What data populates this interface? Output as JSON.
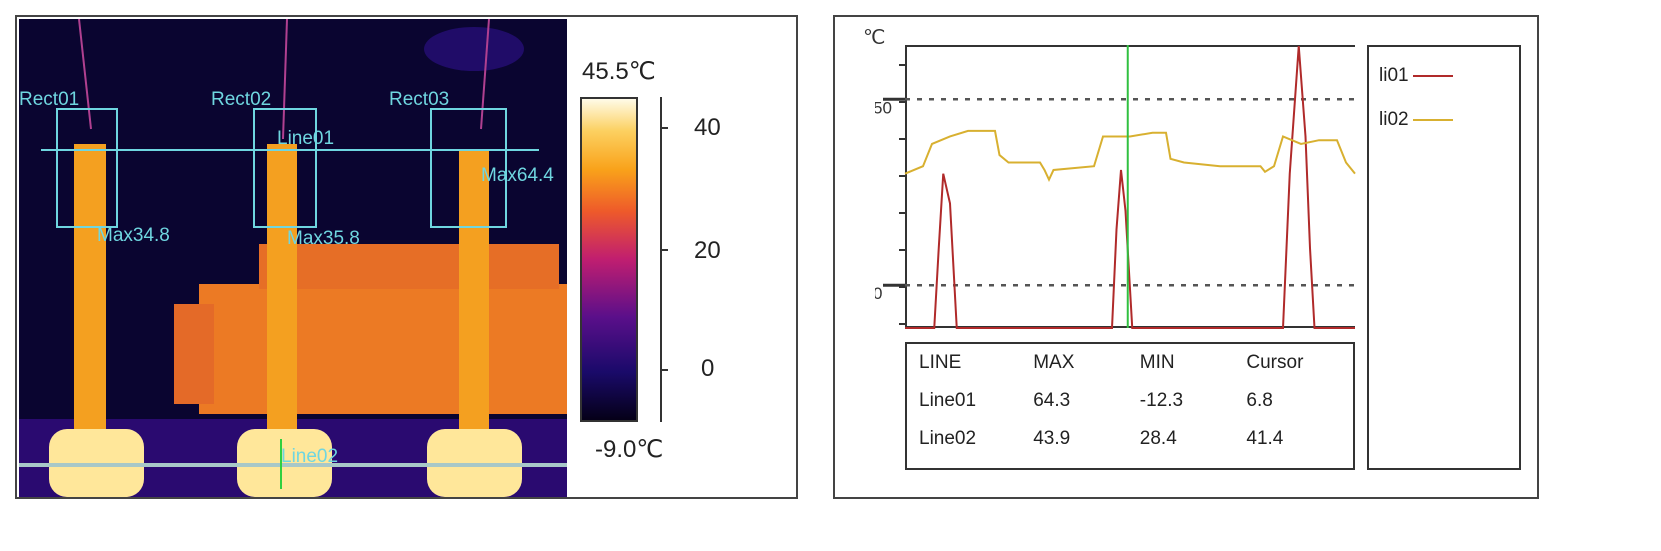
{
  "thermal": {
    "max_temp_label": "45.5℃",
    "min_temp_label": "-9.0℃",
    "scale_ticks": [
      "40",
      "20",
      "0"
    ],
    "regions": [
      {
        "name": "Rect01",
        "max_label": "Max34.8"
      },
      {
        "name": "Rect02",
        "max_label": "Max35.8"
      },
      {
        "name": "Rect03",
        "max_label": "Max64.4"
      }
    ],
    "lines": [
      "Line01",
      "Line02"
    ],
    "colors": {
      "overlay": "#6fd6e0",
      "cold": "#0a0530",
      "warm": "#f08a20",
      "hot": "#ffe79a"
    }
  },
  "chart_data": {
    "type": "line",
    "ylabel": "℃",
    "yticks": [
      "50",
      "0"
    ],
    "ylim": [
      -11.5,
      64.6
    ],
    "xlim": [
      0,
      1
    ],
    "reference_lines": [
      50,
      0
    ],
    "cursor_x": 0.495,
    "series": [
      {
        "name": "li01",
        "color": "#b02a2a",
        "points": [
          [
            0,
            -11.5
          ],
          [
            0.065,
            -11.5
          ],
          [
            0.075,
            10
          ],
          [
            0.085,
            30
          ],
          [
            0.1,
            22
          ],
          [
            0.115,
            -11.5
          ],
          [
            0.46,
            -11.5
          ],
          [
            0.47,
            15
          ],
          [
            0.48,
            31
          ],
          [
            0.49,
            20
          ],
          [
            0.505,
            -11.5
          ],
          [
            0.84,
            -11.5
          ],
          [
            0.855,
            30
          ],
          [
            0.875,
            64.3
          ],
          [
            0.89,
            40
          ],
          [
            0.9,
            10
          ],
          [
            0.91,
            -11.5
          ],
          [
            1,
            -11.5
          ]
        ]
      },
      {
        "name": "li02",
        "color": "#d8b030",
        "points": [
          [
            0,
            30
          ],
          [
            0.04,
            32
          ],
          [
            0.06,
            38
          ],
          [
            0.1,
            40
          ],
          [
            0.14,
            41.5
          ],
          [
            0.2,
            41.5
          ],
          [
            0.21,
            35
          ],
          [
            0.23,
            33
          ],
          [
            0.3,
            33
          ],
          [
            0.31,
            31
          ],
          [
            0.32,
            28.4
          ],
          [
            0.33,
            31
          ],
          [
            0.42,
            32
          ],
          [
            0.44,
            40
          ],
          [
            0.5,
            40
          ],
          [
            0.55,
            41
          ],
          [
            0.58,
            41
          ],
          [
            0.59,
            34
          ],
          [
            0.62,
            33
          ],
          [
            0.7,
            32
          ],
          [
            0.79,
            32
          ],
          [
            0.8,
            30.5
          ],
          [
            0.82,
            32
          ],
          [
            0.84,
            40
          ],
          [
            0.88,
            38
          ],
          [
            0.92,
            39
          ],
          [
            0.96,
            39
          ],
          [
            0.98,
            33
          ],
          [
            1,
            30
          ]
        ]
      }
    ],
    "table": {
      "headers": [
        "LINE",
        "MAX",
        "MIN",
        "Cursor"
      ],
      "rows": [
        [
          "Line01",
          "64.3",
          "-12.3",
          "6.8"
        ],
        [
          "Line02",
          "43.9",
          "28.4",
          "41.4"
        ]
      ]
    },
    "legend": [
      "li01",
      "li02"
    ]
  }
}
